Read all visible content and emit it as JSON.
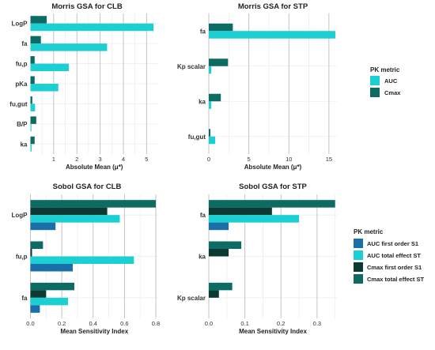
{
  "colors": {
    "auc": "#1ccfd2",
    "cmax": "#0c6b63",
    "auc_first": "#1a6fa8",
    "auc_total": "#1ccfd2",
    "cmax_first": "#0b3a33",
    "cmax_total": "#0c6b63",
    "major_grid": "#bdbdbd",
    "minor_grid": "#ededed"
  },
  "chart_data": [
    {
      "id": "morris-clb",
      "type": "bar",
      "orientation": "horizontal",
      "title": "Morris GSA for CLB",
      "xlabel": "Absolute Mean (μ*)",
      "ylabel": "",
      "xlim": [
        0,
        5.5
      ],
      "xticks": [
        1,
        2,
        3,
        4,
        5
      ],
      "categories": [
        "LogP",
        "fa",
        "fu,p",
        "pKa",
        "fu,gut",
        "B/P",
        "ka"
      ],
      "series": [
        {
          "key": "cmax",
          "values": [
            0.7,
            0.45,
            0.18,
            0.18,
            0.08,
            0.25,
            0.18
          ]
        },
        {
          "key": "auc",
          "values": [
            5.3,
            3.3,
            1.65,
            1.2,
            0.2,
            0.04,
            0.05
          ]
        }
      ]
    },
    {
      "id": "morris-stp",
      "type": "bar",
      "orientation": "horizontal",
      "title": "Morris GSA for STP",
      "xlabel": "Absolute Mean (μ*)",
      "ylabel": "",
      "xlim": [
        0,
        16
      ],
      "xticks": [
        0,
        5,
        10,
        15
      ],
      "categories": [
        "fa",
        "Kp scalar",
        "ka",
        "fu,gut"
      ],
      "series": [
        {
          "key": "cmax",
          "values": [
            3.0,
            2.4,
            1.5,
            0.2
          ]
        },
        {
          "key": "auc",
          "values": [
            15.8,
            0.3,
            0.3,
            0.8
          ]
        }
      ]
    },
    {
      "id": "sobol-clb",
      "type": "bar",
      "orientation": "horizontal",
      "title": "Sobol GSA for CLB",
      "xlabel": "Mean Sensitivity Index",
      "ylabel": "",
      "xlim": [
        0,
        0.815
      ],
      "xticks": [
        0.0,
        0.2,
        0.4,
        0.6,
        0.8
      ],
      "categories": [
        "LogP",
        "fu,p",
        "fa"
      ],
      "series": [
        {
          "key": "cmax_total",
          "values": [
            0.8,
            0.08,
            0.28
          ]
        },
        {
          "key": "cmax_first",
          "values": [
            0.49,
            0.01,
            0.1
          ]
        },
        {
          "key": "auc_total",
          "values": [
            0.57,
            0.66,
            0.24
          ]
        },
        {
          "key": "auc_first",
          "values": [
            0.16,
            0.27,
            0.06
          ]
        }
      ]
    },
    {
      "id": "sobol-stp",
      "type": "bar",
      "orientation": "horizontal",
      "title": "Sobol GSA for STP",
      "xlabel": "Mean Sensitivity Index",
      "ylabel": "",
      "xlim": [
        0,
        0.355
      ],
      "xticks": [
        0.0,
        0.1,
        0.2,
        0.3
      ],
      "categories": [
        "fa",
        "ka",
        "Kp scalar"
      ],
      "series": [
        {
          "key": "cmax_total",
          "values": [
            0.35,
            0.09,
            0.065
          ]
        },
        {
          "key": "cmax_first",
          "values": [
            0.175,
            0.055,
            0.028
          ]
        },
        {
          "key": "auc_total",
          "values": [
            0.25,
            0.0,
            0.0
          ]
        },
        {
          "key": "auc_first",
          "values": [
            0.055,
            0.0,
            0.0
          ]
        }
      ]
    }
  ],
  "legends": {
    "morris": {
      "title": "PK metric",
      "items": [
        {
          "key": "auc",
          "label": "AUC"
        },
        {
          "key": "cmax",
          "label": "Cmax"
        }
      ]
    },
    "sobol": {
      "title": "PK metric",
      "items": [
        {
          "key": "auc_first",
          "label": "AUC first order S1"
        },
        {
          "key": "auc_total",
          "label": "AUC total effect ST"
        },
        {
          "key": "cmax_first",
          "label": "Cmax first order S1"
        },
        {
          "key": "cmax_total",
          "label": "Cmax total effect ST"
        }
      ]
    }
  }
}
